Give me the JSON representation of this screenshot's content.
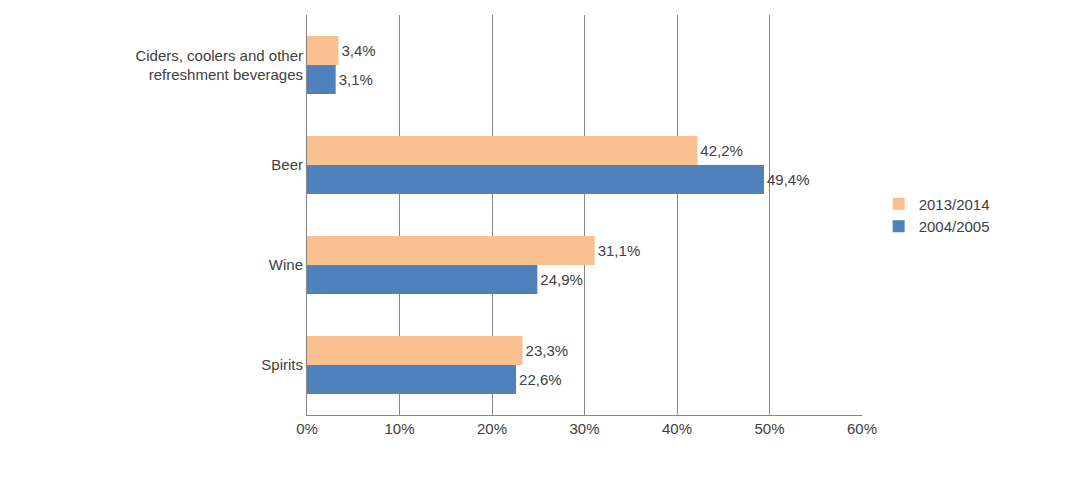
{
  "chart_data": {
    "type": "bar",
    "orientation": "horizontal",
    "categories": [
      "Spirits",
      "Wine",
      "Beer",
      "Ciders, coolers and other refreshment beverages"
    ],
    "series": [
      {
        "name": "2004/2005",
        "color": "#4f81bd",
        "values": [
          22.6,
          24.9,
          49.4,
          3.1
        ],
        "value_labels": [
          "22,6%",
          "24,9%",
          "49,4%",
          "3,1%"
        ]
      },
      {
        "name": "2013/2014",
        "color": "#fac090",
        "values": [
          23.3,
          31.1,
          42.2,
          3.4
        ],
        "value_labels": [
          "23,3%",
          "31,1%",
          "42,2%",
          "3,4%"
        ]
      }
    ],
    "xlim": [
      0,
      60
    ],
    "xticks": [
      {
        "value": 0,
        "label": "0%"
      },
      {
        "value": 10,
        "label": "10%"
      },
      {
        "value": 20,
        "label": "20%"
      },
      {
        "value": 30,
        "label": "30%"
      },
      {
        "value": 40,
        "label": "40%"
      },
      {
        "value": 50,
        "label": "50%"
      },
      {
        "value": 60,
        "label": "60%"
      }
    ],
    "grid": true,
    "legend": "right",
    "data_labels": true
  }
}
